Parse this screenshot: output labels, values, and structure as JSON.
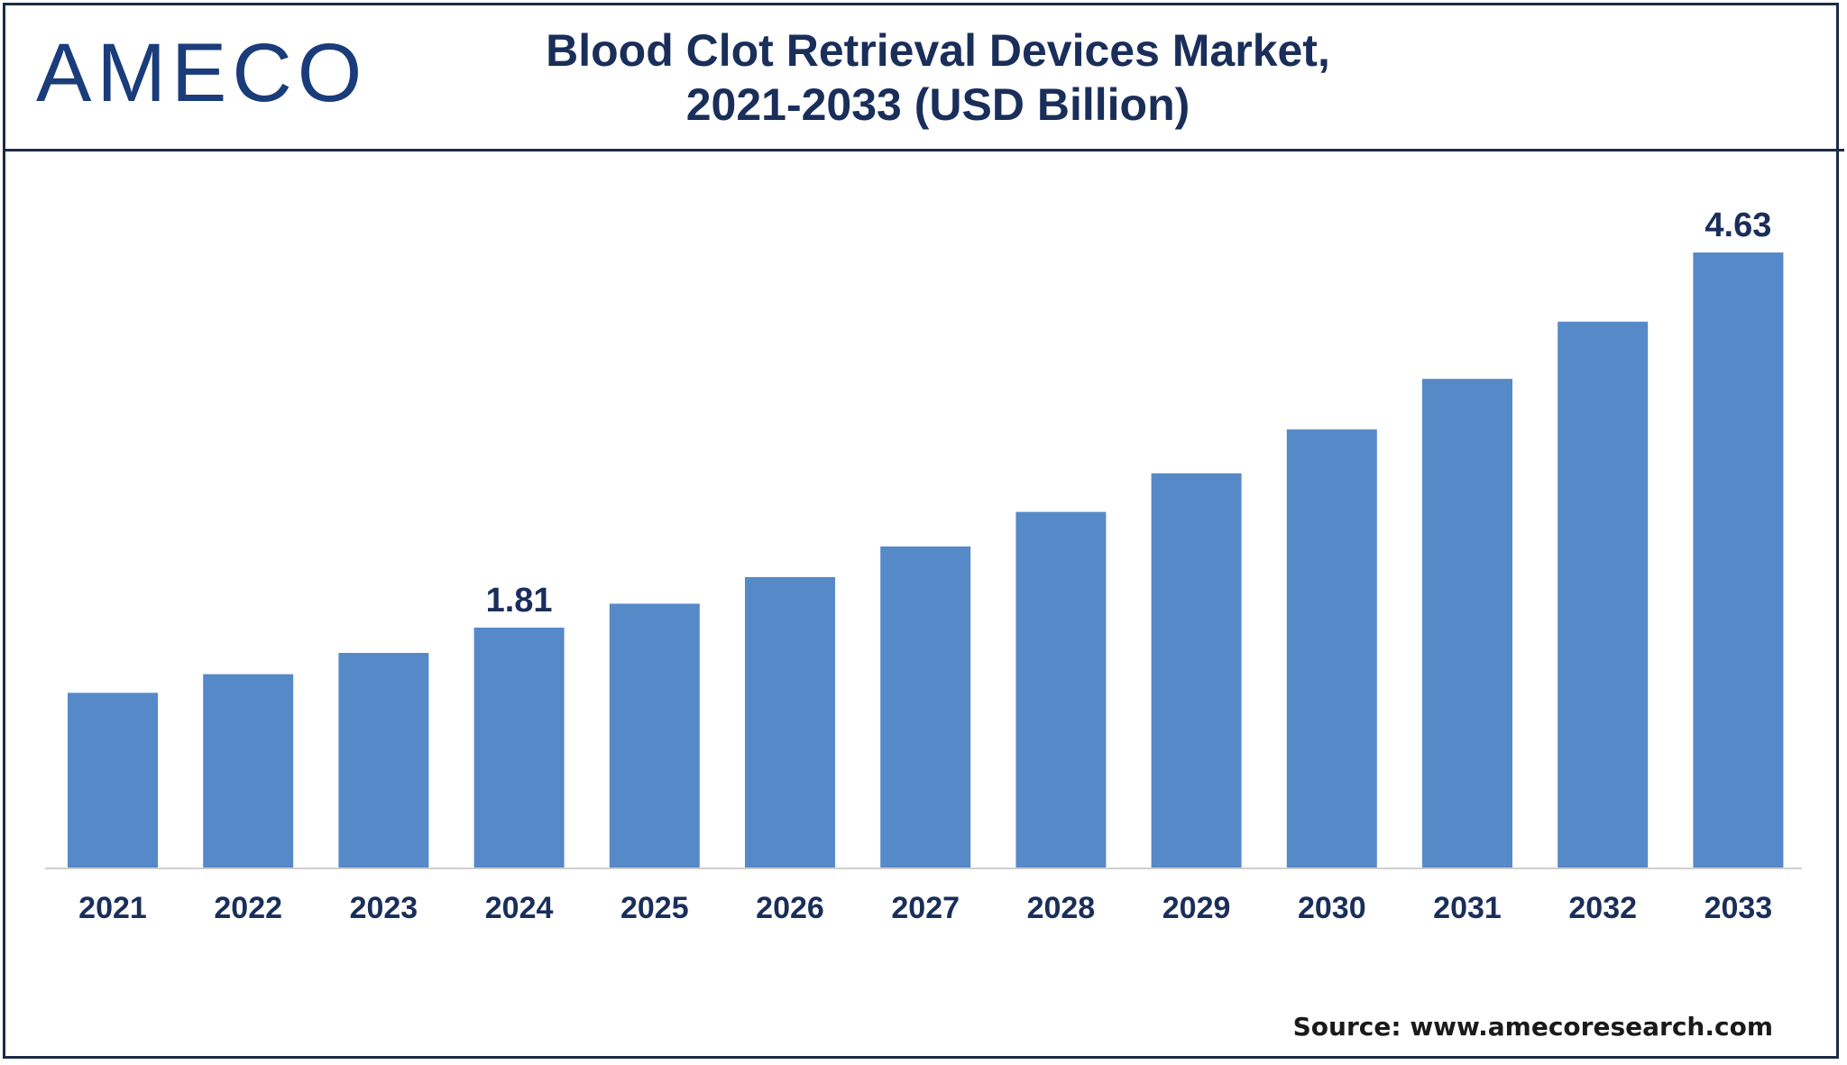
{
  "logo": {
    "text": "AMECO"
  },
  "title": {
    "line1": "Blood Clot Retrieval Devices Market,",
    "line2": "2021-2033 (USD Billion)"
  },
  "source": "Source: www.amecoresearch.com",
  "colors": {
    "bar": "#5689c8",
    "text": "#1a2e5a",
    "axis": "#cfcfcf"
  },
  "chart_data": {
    "type": "bar",
    "title": "Blood Clot Retrieval Devices Market, 2021-2033 (USD Billion)",
    "xlabel": "",
    "ylabel": "USD Billion",
    "ylim": [
      0,
      4.63
    ],
    "grid": false,
    "legend": "none",
    "categories": [
      "2021",
      "2022",
      "2023",
      "2024",
      "2025",
      "2026",
      "2027",
      "2028",
      "2029",
      "2030",
      "2031",
      "2032",
      "2033"
    ],
    "values": [
      1.32,
      1.46,
      1.62,
      1.81,
      1.99,
      2.19,
      2.42,
      2.68,
      2.97,
      3.3,
      3.68,
      4.11,
      4.63
    ],
    "data_labels": {
      "3": "1.81",
      "12": "4.63"
    }
  }
}
